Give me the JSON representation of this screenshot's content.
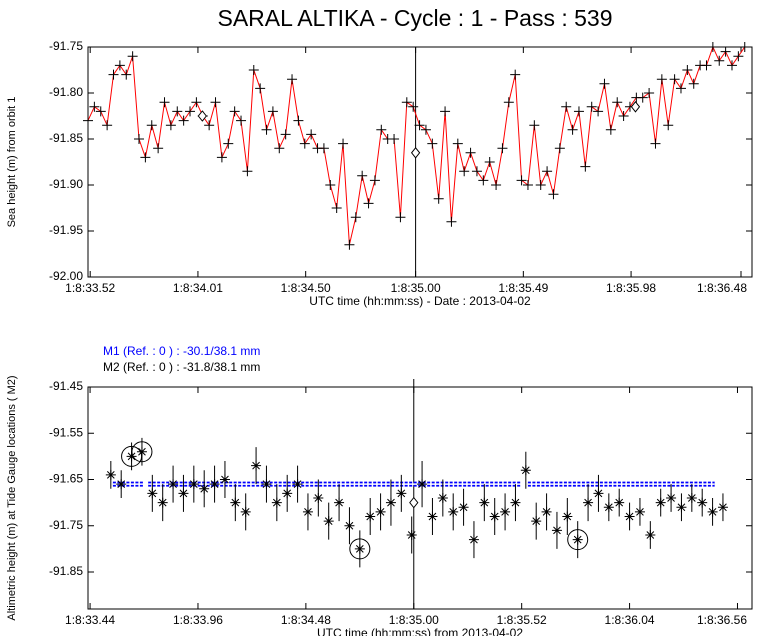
{
  "title": "SARAL ALTIKA - Cycle : 1 - Pass : 539",
  "chart_data": [
    {
      "type": "line",
      "ylabel": "Sea height (m) from orbit 1",
      "xlabel": "UTC time (hh:mm:ss) - Date : 2013-04-02",
      "xlim": [
        33.51,
        36.53
      ],
      "ylim": [
        -92.0,
        -91.75
      ],
      "yticks": [
        {
          "value": -91.75,
          "label": "-91.75"
        },
        {
          "value": -91.8,
          "label": "-91.80"
        },
        {
          "value": -91.85,
          "label": "-91.85"
        },
        {
          "value": -91.9,
          "label": "-91.90"
        },
        {
          "value": -91.95,
          "label": "-91.95"
        },
        {
          "value": -92.0,
          "label": "-92.00"
        }
      ],
      "xticks": [
        {
          "value": 33.52,
          "label": "1:8:33.52"
        },
        {
          "value": 34.01,
          "label": "1:8:34.01"
        },
        {
          "value": 34.5,
          "label": "1:8:34.50"
        },
        {
          "value": 35.0,
          "label": "1:8:35.00"
        },
        {
          "value": 35.49,
          "label": "1:8:35.49"
        },
        {
          "value": 35.98,
          "label": "1:8:35.98"
        },
        {
          "value": 36.48,
          "label": "1:8:36.48"
        }
      ],
      "cursor_x": 35.0,
      "line_color": "#ff0000",
      "marker_color": "#000000",
      "x": [
        33.51,
        33.539,
        33.568,
        33.597,
        33.626,
        33.655,
        33.684,
        33.713,
        33.742,
        33.771,
        33.8,
        33.829,
        33.858,
        33.887,
        33.916,
        33.945,
        33.974,
        34.003,
        34.032,
        34.061,
        34.09,
        34.119,
        34.148,
        34.177,
        34.206,
        34.235,
        34.264,
        34.293,
        34.322,
        34.351,
        34.38,
        34.409,
        34.438,
        34.467,
        34.496,
        34.525,
        34.554,
        34.583,
        34.612,
        34.641,
        34.67,
        34.699,
        34.728,
        34.757,
        34.786,
        34.815,
        34.844,
        34.873,
        34.902,
        34.931,
        34.96,
        34.989,
        35.018,
        35.047,
        35.076,
        35.105,
        35.134,
        35.163,
        35.192,
        35.221,
        35.25,
        35.279,
        35.308,
        35.337,
        35.366,
        35.395,
        35.424,
        35.453,
        35.482,
        35.511,
        35.54,
        35.569,
        35.598,
        35.627,
        35.656,
        35.685,
        35.714,
        35.743,
        35.772,
        35.801,
        35.83,
        35.859,
        35.888,
        35.917,
        35.946,
        35.975,
        36.004,
        36.033,
        36.062,
        36.091,
        36.12,
        36.149,
        36.178,
        36.207,
        36.236,
        36.265,
        36.294,
        36.323,
        36.352,
        36.381,
        36.41,
        36.439,
        36.468,
        36.497
      ],
      "values": [
        -91.83,
        -91.815,
        -91.82,
        -91.835,
        -91.78,
        -91.77,
        -91.78,
        -91.76,
        -91.85,
        -91.87,
        -91.835,
        -91.86,
        -91.81,
        -91.835,
        -91.82,
        -91.83,
        -91.82,
        -91.81,
        -91.825,
        -91.835,
        -91.81,
        -91.87,
        -91.855,
        -91.82,
        -91.83,
        -91.885,
        -91.775,
        -91.795,
        -91.84,
        -91.82,
        -91.86,
        -91.845,
        -91.785,
        -91.83,
        -91.855,
        -91.845,
        -91.86,
        -91.86,
        -91.9,
        -91.925,
        -91.855,
        -91.965,
        -91.935,
        -91.89,
        -91.92,
        -91.895,
        -91.84,
        -91.85,
        -91.85,
        -91.935,
        -91.81,
        -91.815,
        -91.835,
        -91.84,
        -91.855,
        -91.915,
        -91.82,
        -91.94,
        -91.855,
        -91.885,
        -91.865,
        -91.885,
        -91.895,
        -91.875,
        -91.9,
        -91.86,
        -91.81,
        -91.78,
        -91.895,
        -91.9,
        -91.835,
        -91.9,
        -91.885,
        -91.91,
        -91.86,
        -91.815,
        -91.84,
        -91.82,
        -91.88,
        -91.815,
        -91.82,
        -91.79,
        -91.84,
        -91.81,
        -91.825,
        -91.815,
        -91.805,
        -91.805,
        -91.8,
        -91.855,
        -91.785,
        -91.835,
        -91.785,
        -91.795,
        -91.775,
        -91.79,
        -91.77,
        -91.77,
        -91.75,
        -91.765,
        -91.755,
        -91.77,
        -91.76,
        -91.75
      ],
      "special_points": {
        "x": [
          34.03,
          35.0,
          36.0
        ],
        "values": [
          -91.825,
          -91.865,
          -91.815
        ]
      }
    },
    {
      "type": "scatter",
      "ylabel": "Altimetric height (m) at Tide Gauge locations ( M2)",
      "xlabel": "UTC time (hh:mm:ss) from 2013-04-02",
      "annotations": [
        {
          "text": "M1 (Ref. : 0 ) : -30.1/38.1 mm",
          "color": "#0000ff"
        },
        {
          "text": "M2 (Ref. : 0 ) : -31.8/38.1 mm",
          "color": "#000000"
        }
      ],
      "xlim": [
        33.43,
        36.63
      ],
      "ylim": [
        -91.93,
        -91.45
      ],
      "yticks": [
        -91.45,
        -91.55,
        -91.65,
        -91.75,
        -91.85
      ],
      "xticks": [
        {
          "value": 33.44,
          "label": "1:8:33.44"
        },
        {
          "value": 33.96,
          "label": "1:8:33.96"
        },
        {
          "value": 34.48,
          "label": "1:8:34.48"
        },
        {
          "value": 35.0,
          "label": "1:8:35.00"
        },
        {
          "value": 35.52,
          "label": "1:8:35.52"
        },
        {
          "value": 36.04,
          "label": "1:8:36.04"
        },
        {
          "value": 36.56,
          "label": "1:8:36.56"
        }
      ],
      "cursor_x": 35.0,
      "marker_color": "#000000",
      "level": {
        "value": -91.66,
        "color": "#0000ff",
        "x_ranges": [
          [
            33.55,
            33.7
          ],
          [
            33.72,
            35.52
          ],
          [
            35.55,
            36.45
          ]
        ]
      },
      "x": [
        33.54,
        33.59,
        33.64,
        33.69,
        33.74,
        33.79,
        33.84,
        33.89,
        33.94,
        33.99,
        34.04,
        34.09,
        34.14,
        34.19,
        34.24,
        34.29,
        34.34,
        34.39,
        34.44,
        34.49,
        34.54,
        34.59,
        34.64,
        34.69,
        34.74,
        34.79,
        34.84,
        34.89,
        34.94,
        34.99,
        35.04,
        35.09,
        35.14,
        35.19,
        35.24,
        35.29,
        35.34,
        35.39,
        35.44,
        35.49,
        35.54,
        35.59,
        35.64,
        35.69,
        35.74,
        35.79,
        35.84,
        35.89,
        35.94,
        35.99,
        36.04,
        36.09,
        36.14,
        36.19,
        36.24,
        36.29,
        36.34,
        36.39,
        36.44,
        36.49
      ],
      "values": [
        -91.64,
        -91.66,
        -91.6,
        -91.59,
        -91.68,
        -91.7,
        -91.66,
        -91.68,
        -91.66,
        -91.67,
        -91.66,
        -91.65,
        -91.7,
        -91.72,
        -91.62,
        -91.66,
        -91.7,
        -91.68,
        -91.66,
        -91.72,
        -91.69,
        -91.74,
        -91.7,
        -91.75,
        -91.8,
        -91.73,
        -91.72,
        -91.7,
        -91.68,
        -91.77,
        -91.66,
        -91.73,
        -91.69,
        -91.72,
        -91.71,
        -91.78,
        -91.7,
        -91.73,
        -91.72,
        -91.7,
        -91.63,
        -91.74,
        -91.72,
        -91.76,
        -91.73,
        -91.78,
        -91.7,
        -91.68,
        -91.71,
        -91.7,
        -91.73,
        -91.72,
        -91.77,
        -91.7,
        -91.69,
        -91.71,
        -91.69,
        -91.7,
        -91.72,
        -91.71
      ],
      "errors": [
        0.03,
        0.03,
        0.03,
        0.03,
        0.04,
        0.04,
        0.04,
        0.04,
        0.04,
        0.04,
        0.04,
        0.04,
        0.04,
        0.04,
        0.04,
        0.04,
        0.04,
        0.04,
        0.04,
        0.04,
        0.04,
        0.04,
        0.04,
        0.04,
        0.04,
        0.04,
        0.04,
        0.05,
        0.04,
        0.04,
        0.05,
        0.04,
        0.04,
        0.04,
        0.04,
        0.04,
        0.04,
        0.04,
        0.04,
        0.04,
        0.04,
        0.04,
        0.04,
        0.04,
        0.04,
        0.04,
        0.04,
        0.04,
        0.03,
        0.03,
        0.03,
        0.03,
        0.03,
        0.03,
        0.03,
        0.03,
        0.03,
        0.03,
        0.03,
        0.03
      ],
      "circled_indices": [
        2,
        3,
        24,
        45
      ],
      "special_points": {
        "x": [
          35.0
        ],
        "values": [
          -91.7
        ]
      }
    }
  ]
}
